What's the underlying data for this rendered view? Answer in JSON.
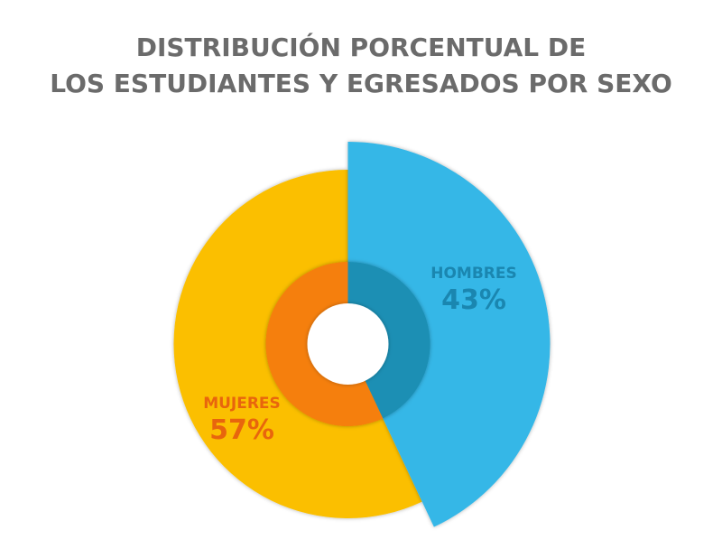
{
  "chart_data": {
    "type": "pie",
    "title": [
      "DISTRIBUCIÓN PORCENTUAL DE",
      "LOS ESTUDIANTES Y EGRESADOS POR SEXO"
    ],
    "slices": [
      {
        "label": "HOMBRES",
        "value": 43,
        "value_label": "43%",
        "color": "#36b7e7",
        "inner_color": "#1a8fb4",
        "text_color": "#1a86b0",
        "exploded": true
      },
      {
        "label": "MUJERES",
        "value": 57,
        "value_label": "57%",
        "color": "#fbbf04",
        "inner_color": "#f57f08",
        "text_color": "#e8650d",
        "exploded": false
      }
    ]
  }
}
